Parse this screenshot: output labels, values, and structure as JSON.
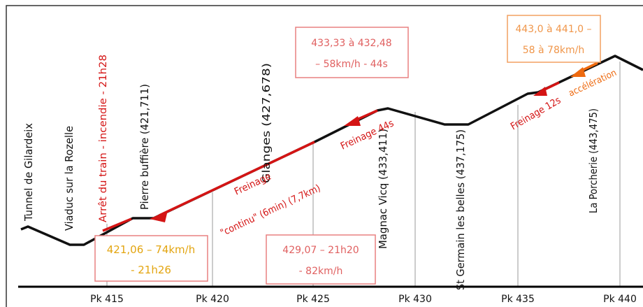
{
  "colors": {
    "profile": "#111111",
    "braking": "#d41414",
    "accel": "#ee6a10",
    "box_red": "#e98080",
    "box_yellow": "#e0a020",
    "box_orange": "#f2a060",
    "gridline": "#9a9a9a"
  },
  "axis": {
    "ticks": [
      "Pk 415",
      "Pk 420",
      "Pk 425",
      "Pk 430",
      "Pk 435",
      "Pk 440"
    ]
  },
  "places": [
    "Tunnel de Gilardeix",
    "Viaduc sur la Rozelle",
    "Pierre buffière (421,711)",
    "Glanges (427,678)",
    "Magnac Vicq (433,411)",
    "St Germain les belles (437,175)",
    "La Porcherie (443,475)"
  ],
  "events": {
    "stop": "Arrêt du train - incendie - 21h28",
    "braking_continuous_1": "Freinage",
    "braking_continuous_2": "\"continu\" (6min) (7,7km)",
    "braking_44": "Freinage 44s",
    "braking_12": "Freinage 12s",
    "acceleration": "accélération"
  },
  "boxes": {
    "b1": [
      "433,33 à 432,48",
      "– 58km/h - 44s"
    ],
    "b2": [
      "443,0 à 441,0 –",
      "58 à 78km/h"
    ],
    "b3": [
      "421,06 – 74km/h",
      "- 21h26"
    ],
    "b4": [
      "429,07 – 21h20",
      "- 82km/h"
    ]
  }
}
